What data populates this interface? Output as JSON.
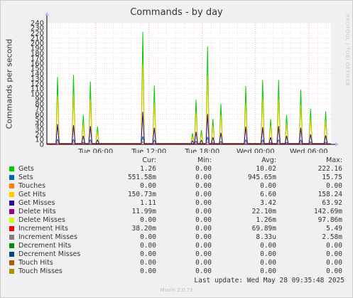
{
  "title": "Commands - by day",
  "ylabel": "Commands per second",
  "side_label": "RRDTOOL / TOBI OETIKER",
  "footer": "Last update: Wed May 28 09:35:48 2025",
  "version": "Munin 2.0.73",
  "table_headers": [
    "Cur:",
    "Min:",
    "Avg:",
    "Max:"
  ],
  "chart_data": {
    "type": "line",
    "ylabel": "Commands per second",
    "ylim": [
      0,
      240
    ],
    "y_ticks": [
      0,
      10,
      20,
      30,
      40,
      50,
      60,
      70,
      80,
      90,
      100,
      110,
      120,
      130,
      140,
      150,
      160,
      170,
      180,
      190,
      200,
      210,
      220,
      230,
      240
    ],
    "x_ticks": [
      "Tue 06:00",
      "Tue 12:00",
      "Tue 18:00",
      "Wed 00:00",
      "Wed 06:00"
    ],
    "x_range_hours": [
      0,
      32
    ],
    "x_tick_hours": [
      5.5,
      11.5,
      17.5,
      23.5,
      29.5
    ],
    "grid": true,
    "spikes": [
      {
        "t": 1.2,
        "gets": 133,
        "hits": 95,
        "miss": 40
      },
      {
        "t": 3.0,
        "gets": 137,
        "hits": 95,
        "miss": 38
      },
      {
        "t": 4.1,
        "gets": 58,
        "hits": 40,
        "miss": 17
      },
      {
        "t": 4.9,
        "gets": 124,
        "hits": 88,
        "miss": 36
      },
      {
        "t": 5.7,
        "gets": 35,
        "hits": 25,
        "miss": 9
      },
      {
        "t": 10.8,
        "gets": 222,
        "hits": 158,
        "miss": 64
      },
      {
        "t": 12.1,
        "gets": 116,
        "hits": 82,
        "miss": 33
      },
      {
        "t": 16.4,
        "gets": 22,
        "hits": 15,
        "miss": 7
      },
      {
        "t": 16.8,
        "gets": 88,
        "hits": 62,
        "miss": 25
      },
      {
        "t": 17.4,
        "gets": 28,
        "hits": 20,
        "miss": 8
      },
      {
        "t": 18.1,
        "gets": 193,
        "hits": 135,
        "miss": 60
      },
      {
        "t": 18.7,
        "gets": 50,
        "hits": 36,
        "miss": 14
      },
      {
        "t": 19.6,
        "gets": 80,
        "hits": 57,
        "miss": 23
      },
      {
        "t": 22.4,
        "gets": 115,
        "hits": 80,
        "miss": 35
      },
      {
        "t": 24.3,
        "gets": 127,
        "hits": 88,
        "miss": 34
      },
      {
        "t": 25.2,
        "gets": 50,
        "hits": 36,
        "miss": 14
      },
      {
        "t": 26.1,
        "gets": 127,
        "hits": 88,
        "miss": 36
      },
      {
        "t": 27.0,
        "gets": 58,
        "hits": 40,
        "miss": 17
      },
      {
        "t": 28.6,
        "gets": 108,
        "hits": 76,
        "miss": 33
      },
      {
        "t": 29.7,
        "gets": 70,
        "hits": 50,
        "miss": 20
      },
      {
        "t": 31.4,
        "gets": 65,
        "hits": 46,
        "miss": 18
      }
    ],
    "series": [
      {
        "name": "Gets",
        "color": "#00cc00",
        "cur": "1.26",
        "min": "0.00",
        "avg": "10.02",
        "max": "222.16"
      },
      {
        "name": "Sets",
        "color": "#0066b3",
        "cur": "551.58m",
        "min": "0.00",
        "avg": "945.65m",
        "max": "15.75"
      },
      {
        "name": "Touches",
        "color": "#ff8000",
        "cur": "0.00",
        "min": "0.00",
        "avg": "0.00",
        "max": "0.00"
      },
      {
        "name": "Get Hits",
        "color": "#ffcc00",
        "cur": "150.73m",
        "min": "0.00",
        "avg": "6.60",
        "max": "158.24"
      },
      {
        "name": "Get Misses",
        "color": "#330099",
        "cur": "1.11",
        "min": "0.00",
        "avg": "3.42",
        "max": "63.92"
      },
      {
        "name": "Delete Hits",
        "color": "#990099",
        "cur": "11.99m",
        "min": "0.00",
        "avg": "22.10m",
        "max": "142.69m"
      },
      {
        "name": "Delete Misses",
        "color": "#ccff00",
        "cur": "0.00",
        "min": "0.00",
        "avg": "1.26m",
        "max": "97.86m"
      },
      {
        "name": "Increment Hits",
        "color": "#ff0000",
        "cur": "38.20m",
        "min": "0.00",
        "avg": "69.89m",
        "max": "5.49"
      },
      {
        "name": "Increment Misses",
        "color": "#808080",
        "cur": "0.00",
        "min": "0.00",
        "avg": "8.33u",
        "max": "2.58m"
      },
      {
        "name": "Decrement Hits",
        "color": "#008f00",
        "cur": "0.00",
        "min": "0.00",
        "avg": "0.00",
        "max": "0.00"
      },
      {
        "name": "Decrement Misses",
        "color": "#00487d",
        "cur": "0.00",
        "min": "0.00",
        "avg": "0.00",
        "max": "0.00"
      },
      {
        "name": "Touch Hits",
        "color": "#b35a00",
        "cur": "0.00",
        "min": "0.00",
        "avg": "0.00",
        "max": "0.00"
      },
      {
        "name": "Touch Misses",
        "color": "#b38f00",
        "cur": "0.00",
        "min": "0.00",
        "avg": "0.00",
        "max": "0.00"
      }
    ]
  }
}
